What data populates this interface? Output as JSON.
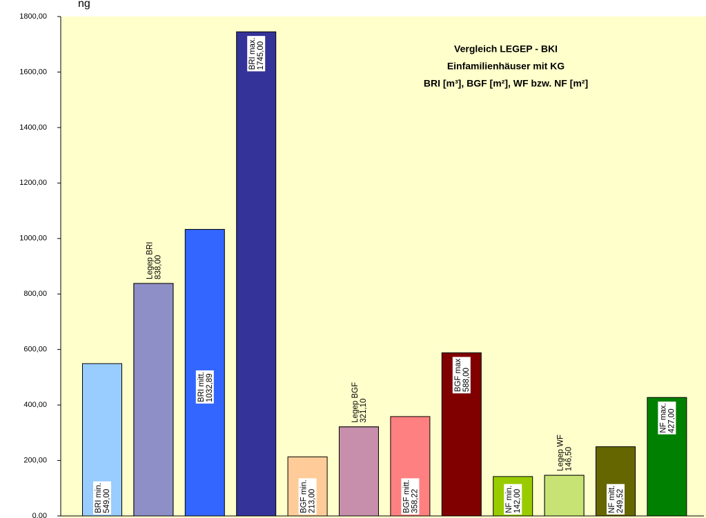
{
  "chart_data": {
    "type": "bar",
    "title": "ng",
    "annotations": [
      "Vergleich LEGEP - BKI",
      "Einfamilienhäuser mit KG",
      "BRI [m³], BGF [m²], WF bzw. NF [m²]"
    ],
    "categories": [
      "BRI min.",
      "Legep BRI",
      "BRI mitt.",
      "BRI max.",
      "BGF min.",
      "Legep BGF",
      "BGF mitt.",
      "BGF max",
      "NF min.",
      "Legep WF",
      "NF mitt.",
      "NF max."
    ],
    "values": [
      549,
      838,
      1032.89,
      1745,
      213,
      321.1,
      358.22,
      588,
      142,
      146.5,
      249.52,
      427
    ],
    "value_labels": [
      "549,00",
      "838,00",
      "1032,89",
      "1745,00",
      "213,00",
      "321,10",
      "358,22",
      "588,00",
      "142,00",
      "146,50",
      "249,52",
      "427,00"
    ],
    "colors": [
      "#99ccff",
      "#333399",
      "#3366ff",
      "#333399",
      "#ffcc99",
      "#993366",
      "#ff8080",
      "#800000",
      "#99cc00",
      "#99cc00",
      "#666600",
      "#008000"
    ],
    "hatched": [
      false,
      true,
      false,
      false,
      false,
      true,
      false,
      false,
      false,
      true,
      false,
      false
    ],
    "ylim": [
      0,
      1800
    ],
    "yticks": [
      {
        "value": 0,
        "label": "0,00"
      },
      {
        "value": 200,
        "label": "200,00"
      },
      {
        "value": 400,
        "label": "400,00"
      },
      {
        "value": 600,
        "label": "600,00"
      },
      {
        "value": 800,
        "label": "800,00"
      },
      {
        "value": 1000,
        "label": "1000,00"
      },
      {
        "value": 1200,
        "label": "1200,00"
      },
      {
        "value": 1400,
        "label": "1400,00"
      },
      {
        "value": 1600,
        "label": "1600,00"
      },
      {
        "value": 1800,
        "label": "1800,00"
      }
    ]
  }
}
